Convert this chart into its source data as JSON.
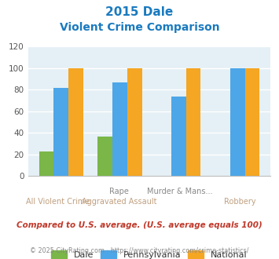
{
  "title_line1": "2015 Dale",
  "title_line2": "Violent Crime Comparison",
  "title_color": "#1a7abf",
  "cat_labels_top": [
    "",
    "Rape",
    "Murder & Mans...",
    ""
  ],
  "cat_labels_bottom": [
    "All Violent Crime",
    "Aggravated Assault",
    "",
    "Robbery"
  ],
  "dale_values": [
    23,
    37,
    0,
    0
  ],
  "pennsylvania_values": [
    82,
    87,
    74,
    100
  ],
  "national_values": [
    100,
    100,
    100,
    100
  ],
  "dale_color": "#7ab648",
  "pennsylvania_color": "#4da6e8",
  "national_color": "#f5a623",
  "ylim": [
    0,
    120
  ],
  "yticks": [
    0,
    20,
    40,
    60,
    80,
    100,
    120
  ],
  "bar_width": 0.25,
  "plot_bg_color": "#e4f0f5",
  "grid_color": "#ffffff",
  "legend_labels": [
    "Dale",
    "Pennsylvania",
    "National"
  ],
  "footnote1": "Compared to U.S. average. (U.S. average equals 100)",
  "footnote2": "© 2025 CityRating.com - https://www.cityrating.com/crime-statistics/",
  "footnote1_color": "#c0392b",
  "footnote2_color": "#888888",
  "xlabel_top_color": "#888888",
  "xlabel_bot_color": "#c0a080"
}
